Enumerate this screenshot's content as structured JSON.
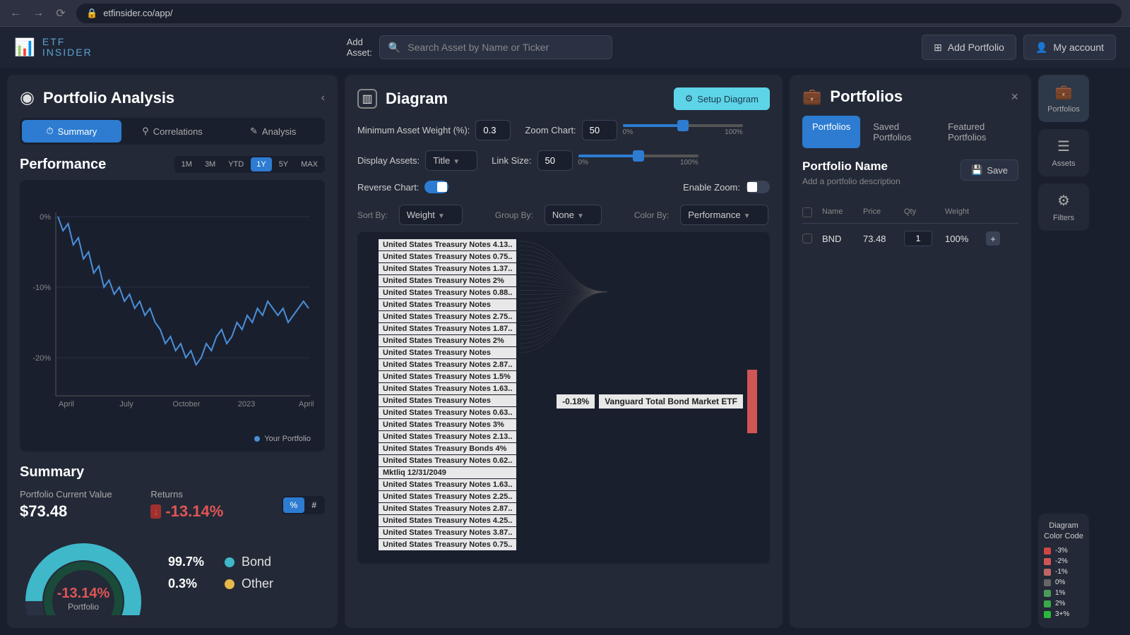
{
  "browser": {
    "url": "etfinsider.co/app/"
  },
  "logo": {
    "line1": "ETF",
    "line2": "INSIDER"
  },
  "topnav": {
    "add_asset_label": "Add\nAsset:",
    "search_placeholder": "Search Asset by Name or Ticker",
    "add_portfolio": "Add Portfolio",
    "my_account": "My account"
  },
  "left": {
    "title": "Portfolio Analysis",
    "tabs": [
      "Summary",
      "Correlations",
      "Analysis"
    ],
    "performance_title": "Performance",
    "ranges": [
      "1M",
      "3M",
      "YTD",
      "1Y",
      "5Y",
      "MAX"
    ],
    "range_active": "1Y",
    "chart": {
      "y_ticks": [
        "0%",
        "-10%",
        "-20%"
      ],
      "x_ticks": [
        "April",
        "July",
        "October",
        "2023",
        "April"
      ],
      "legend": "Your Portfolio",
      "line_color": "#4a8fd8",
      "points": [
        0,
        -2,
        -1,
        -4,
        -3,
        -6,
        -5,
        -8,
        -7,
        -10,
        -9,
        -11,
        -10,
        -12,
        -11,
        -13,
        -12,
        -14,
        -13,
        -15,
        -16,
        -18,
        -17,
        -19,
        -18,
        -20,
        -19,
        -21,
        -20,
        -18,
        -19,
        -17,
        -16,
        -18,
        -17,
        -15,
        -16,
        -14,
        -15,
        -13,
        -14,
        -12,
        -13,
        -14,
        -13,
        -15,
        -14,
        -13,
        -12,
        -13
      ]
    },
    "summary": {
      "title": "Summary",
      "current_label": "Portfolio Current Value",
      "current_value": "$73.48",
      "returns_label": "Returns",
      "returns_value": "-13.14%",
      "donut_center": "-13.14%",
      "donut_sub": "Portfolio",
      "allocations": [
        {
          "pct": "99.7%",
          "label": "Bond",
          "color": "#3fb8c9"
        },
        {
          "pct": "0.3%",
          "label": "Other",
          "color": "#e8b94a"
        }
      ]
    }
  },
  "mid": {
    "title": "Diagram",
    "setup_btn": "Setup Diagram",
    "min_weight_label": "Minimum Asset Weight (%):",
    "min_weight_value": "0.3",
    "display_label": "Display Assets:",
    "display_value": "Title",
    "reverse_label": "Reverse Chart:",
    "zoom_label": "Zoom Chart:",
    "zoom_value": "50",
    "link_label": "Link Size:",
    "link_value": "50",
    "enable_zoom_label": "Enable Zoom:",
    "sort_label": "Sort By:",
    "sort_value": "Weight",
    "group_label": "Group By:",
    "group_value": "None",
    "color_label": "Color By:",
    "color_value": "Performance",
    "slider_min": "0%",
    "slider_max": "100%",
    "sankey_right_pct": "-0.18%",
    "sankey_right_label": "Vanguard Total Bond Market ETF",
    "sankey_items": [
      "United States Treasury Notes 4.13..",
      "United States Treasury Notes 0.75..",
      "United States Treasury Notes 1.37..",
      "United States Treasury Notes 2%",
      "United States Treasury Notes 0.88..",
      "United States Treasury Notes",
      "United States Treasury Notes 2.75..",
      "United States Treasury Notes 1.87..",
      "United States Treasury Notes 2%",
      "United States Treasury Notes",
      "United States Treasury Notes 2.87..",
      "United States Treasury Notes 1.5%",
      "United States Treasury Notes 1.63..",
      "United States Treasury Notes",
      "United States Treasury Notes 0.63..",
      "United States Treasury Notes 3%",
      "United States Treasury Notes 2.13..",
      "United States Treasury Bonds 4%",
      "United States Treasury Notes 0.62..",
      "Mktliq 12/31/2049",
      "United States Treasury Notes 1.63..",
      "United States Treasury Notes 2.25..",
      "United States Treasury Notes 2.87..",
      "United States Treasury Notes 4.25..",
      "United States Treasury Notes 3.87..",
      "United States Treasury Notes 0.75.."
    ]
  },
  "right": {
    "title": "Portfolios",
    "tabs": [
      "Portfolios",
      "Saved Portfolios",
      "Featured Portfolios"
    ],
    "portfolio_name": "Portfolio Name",
    "portfolio_desc": "Add a portfolio description",
    "save_btn": "Save",
    "columns": [
      "Name",
      "Price",
      "Qty",
      "Weight"
    ],
    "row": {
      "name": "BND",
      "price": "73.48",
      "qty": "1",
      "weight": "100%"
    }
  },
  "side": {
    "items": [
      "Portfolios",
      "Assets",
      "Filters"
    ]
  },
  "color_code": {
    "title": "Diagram Color Code",
    "rows": [
      {
        "color": "#d04545",
        "label": "-3%"
      },
      {
        "color": "#d05555",
        "label": "-2%"
      },
      {
        "color": "#c06565",
        "label": "-1%"
      },
      {
        "color": "#666666",
        "label": "0%"
      },
      {
        "color": "#4a9a5a",
        "label": "1%"
      },
      {
        "color": "#3aaa4a",
        "label": "2%"
      },
      {
        "color": "#2aba3a",
        "label": "3+%"
      }
    ]
  }
}
